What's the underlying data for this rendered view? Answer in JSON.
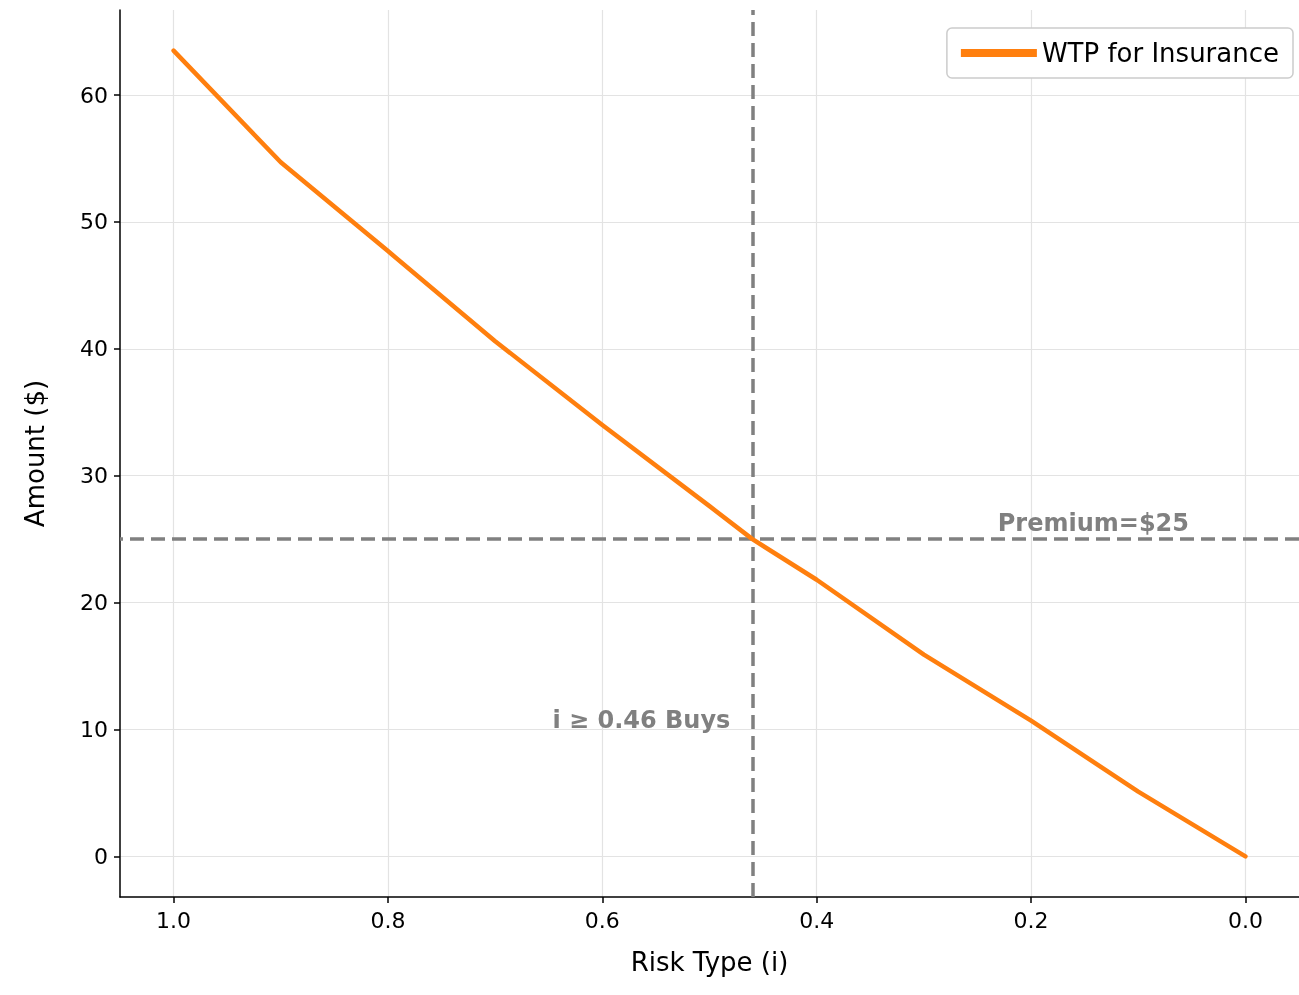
{
  "chart_data": {
    "type": "line",
    "xlabel": "Risk Type (i)",
    "ylabel": "Amount ($)",
    "x": [
      1.0,
      0.9,
      0.8,
      0.7,
      0.6,
      0.5,
      0.46,
      0.4,
      0.3,
      0.2,
      0.1,
      0.0
    ],
    "series": [
      {
        "name": "WTP for Insurance",
        "color": "#ff7f0e",
        "values": [
          63.5,
          54.7,
          47.7,
          40.6,
          34.0,
          27.6,
          25.0,
          21.8,
          15.9,
          10.7,
          5.1,
          0.0
        ]
      }
    ],
    "xlim": [
      1.05,
      -0.05
    ],
    "xticks": [
      {
        "value": 1,
        "label": "1.0"
      },
      0.8,
      0.6,
      0.4,
      0.2,
      {
        "value": 0,
        "label": "0.0"
      }
    ],
    "ylim": [
      -3.2,
      66.7
    ],
    "yticks": [
      0,
      10,
      20,
      30,
      40,
      50,
      60
    ],
    "ref_lines": [
      {
        "axis": "y",
        "value": 25,
        "label": "Premium=$25",
        "color": "#808080",
        "line_style": "dashed"
      },
      {
        "axis": "x",
        "value": 0.46,
        "label": "i ≥ 0.46 Buys",
        "color": "#808080",
        "line_style": "dashed"
      }
    ],
    "grid": true,
    "legend": "top right",
    "marker": "none",
    "line_style": "solid"
  }
}
